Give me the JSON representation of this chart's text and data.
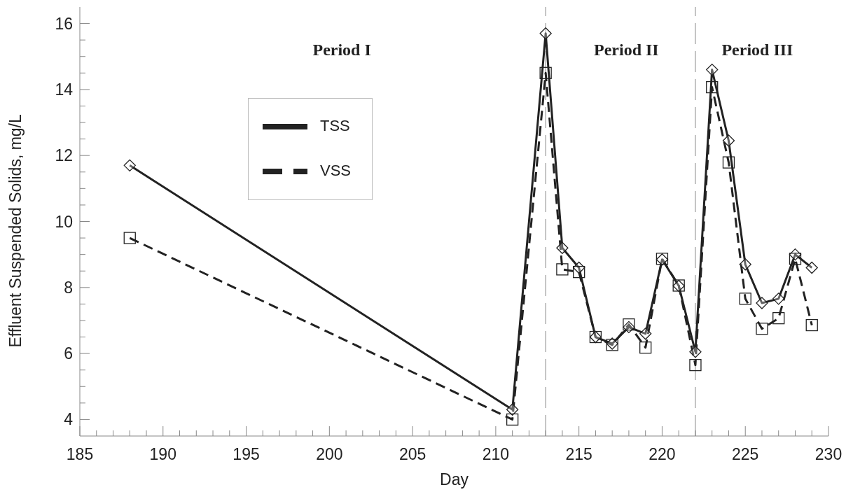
{
  "chart_data": {
    "type": "line",
    "xlabel": "Day",
    "ylabel": "Effluent Suspended Solids, mg/L",
    "x": [
      188,
      211,
      213,
      214,
      215,
      216,
      217,
      218,
      219,
      220,
      221,
      222,
      223,
      224,
      225,
      226,
      227,
      228,
      229
    ],
    "series": [
      {
        "name": "TSS",
        "color": "#222222",
        "marker": "diamond",
        "line_style": "solid",
        "values": [
          11.7,
          4.3,
          15.7,
          9.2,
          8.6,
          6.5,
          6.3,
          6.8,
          6.6,
          8.85,
          8.05,
          6.05,
          14.6,
          12.45,
          8.7,
          7.53,
          7.66,
          9.0,
          8.6
        ]
      },
      {
        "name": "VSS",
        "color": "#222222",
        "marker": "square",
        "line_style": "dashed",
        "values": [
          9.5,
          4.0,
          14.5,
          8.55,
          8.47,
          6.5,
          6.26,
          6.88,
          6.18,
          8.87,
          8.06,
          5.65,
          14.07,
          11.79,
          7.66,
          6.75,
          7.07,
          8.87,
          6.86
        ]
      }
    ],
    "xlim": [
      185,
      230
    ],
    "xticks": [
      185,
      {
        "value": 186,
        "label": null
      },
      {
        "value": 187,
        "label": null
      },
      {
        "value": 188,
        "label": null
      },
      {
        "value": 189,
        "label": null
      },
      190,
      {
        "value": 191,
        "label": null
      },
      {
        "value": 192,
        "label": null
      },
      {
        "value": 193,
        "label": null
      },
      {
        "value": 194,
        "label": null
      },
      195,
      {
        "value": 196,
        "label": null
      },
      {
        "value": 197,
        "label": null
      },
      {
        "value": 198,
        "label": null
      },
      {
        "value": 199,
        "label": null
      },
      200,
      {
        "value": 201,
        "label": null
      },
      {
        "value": 202,
        "label": null
      },
      {
        "value": 203,
        "label": null
      },
      {
        "value": 204,
        "label": null
      },
      205,
      {
        "value": 206,
        "label": null
      },
      {
        "value": 207,
        "label": null
      },
      {
        "value": 208,
        "label": null
      },
      {
        "value": 209,
        "label": null
      },
      210,
      {
        "value": 211,
        "label": null
      },
      {
        "value": 212,
        "label": null
      },
      {
        "value": 213,
        "label": null
      },
      {
        "value": 214,
        "label": null
      },
      215,
      {
        "value": 216,
        "label": null
      },
      {
        "value": 217,
        "label": null
      },
      {
        "value": 218,
        "label": null
      },
      {
        "value": 219,
        "label": null
      },
      220,
      {
        "value": 221,
        "label": null
      },
      {
        "value": 222,
        "label": null
      },
      {
        "value": 223,
        "label": null
      },
      {
        "value": 224,
        "label": null
      },
      225,
      {
        "value": 226,
        "label": null
      },
      {
        "value": 227,
        "label": null
      },
      {
        "value": 228,
        "label": null
      },
      {
        "value": 229,
        "label": null
      },
      230
    ],
    "ylim": [
      3.5,
      16.5
    ],
    "yticks": [
      4,
      {
        "value": 4.5,
        "label": null
      },
      {
        "value": 5,
        "label": null
      },
      {
        "value": 5.5,
        "label": null
      },
      6,
      {
        "value": 6.5,
        "label": null
      },
      {
        "value": 7,
        "label": null
      },
      {
        "value": 7.5,
        "label": null
      },
      8,
      {
        "value": 8.5,
        "label": null
      },
      {
        "value": 9,
        "label": null
      },
      {
        "value": 9.5,
        "label": null
      },
      10,
      {
        "value": 10.5,
        "label": null
      },
      {
        "value": 11,
        "label": null
      },
      {
        "value": 11.5,
        "label": null
      },
      12,
      {
        "value": 12.5,
        "label": null
      },
      {
        "value": 13,
        "label": null
      },
      {
        "value": 13.5,
        "label": null
      },
      14,
      {
        "value": 14.5,
        "label": null
      },
      {
        "value": 15,
        "label": null
      },
      {
        "value": 15.5,
        "label": null
      },
      16
    ],
    "ref_lines": [
      {
        "axis": "x",
        "value": 213,
        "color": "#888888",
        "line_style": "dashed"
      },
      {
        "axis": "x",
        "value": 222,
        "color": "#888888",
        "line_style": "dashed"
      }
    ],
    "annotations": [
      "Period I",
      "Period II",
      "Period III"
    ],
    "legend": "top left",
    "grid": false
  }
}
